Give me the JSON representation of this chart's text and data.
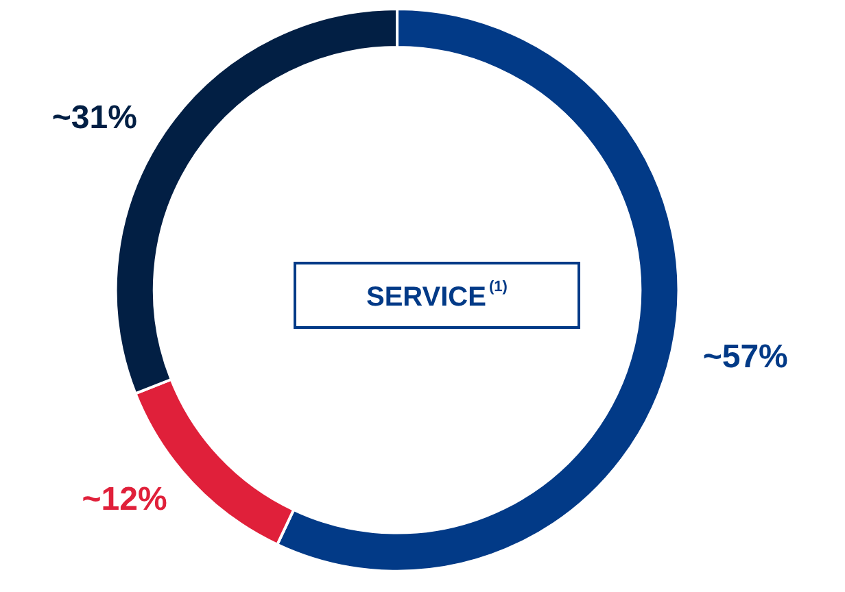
{
  "chart_data": {
    "type": "donut",
    "title": "SERVICE$^{(1)}$",
    "categories": [
      null,
      null,
      null
    ],
    "values": [
      57,
      12,
      31
    ],
    "colors": [
      "#023a87",
      "#e0203a",
      "#021f44"
    ],
    "value_labels": [
      "~57%",
      "~12%",
      "~31%"
    ]
  }
}
